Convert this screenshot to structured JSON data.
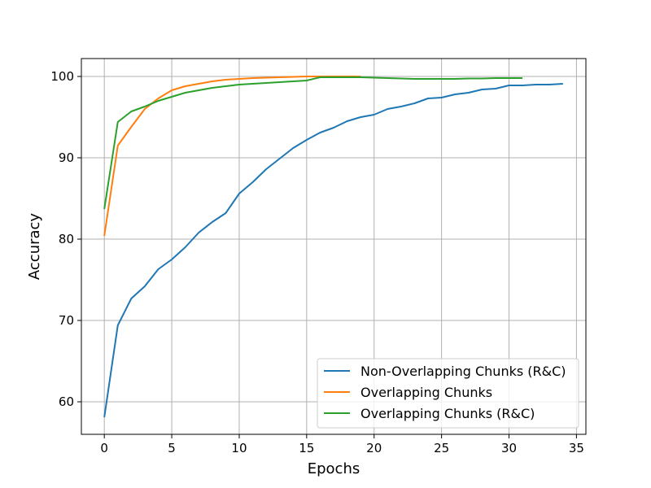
{
  "chart_data": {
    "type": "line",
    "title": "",
    "xlabel": "Epochs",
    "ylabel": "Accuracy",
    "xlim": [
      -1.7,
      35.7
    ],
    "ylim": [
      56.0,
      102.2
    ],
    "xticks": [
      0,
      5,
      10,
      15,
      20,
      25,
      30,
      35
    ],
    "yticks": [
      60,
      70,
      80,
      90,
      100
    ],
    "grid": true,
    "legend_position": "lower-right",
    "series": [
      {
        "name": "Non-Overlapping Chunks (R&C)",
        "color": "#1f77b4",
        "x": [
          0,
          1,
          2,
          3,
          4,
          5,
          6,
          7,
          8,
          9,
          10,
          11,
          12,
          13,
          14,
          15,
          16,
          17,
          18,
          19,
          20,
          21,
          22,
          23,
          24,
          25,
          26,
          27,
          28,
          29,
          30,
          31,
          32,
          33,
          34
        ],
        "values": [
          58.1,
          69.4,
          72.7,
          74.2,
          76.3,
          77.5,
          79.0,
          80.8,
          82.1,
          83.2,
          85.6,
          87.0,
          88.6,
          89.9,
          91.2,
          92.2,
          93.1,
          93.7,
          94.5,
          95.0,
          95.3,
          96.0,
          96.3,
          96.7,
          97.3,
          97.4,
          97.8,
          98.0,
          98.4,
          98.5,
          98.9,
          98.9,
          99.0,
          99.0,
          99.1
        ]
      },
      {
        "name": "Overlapping Chunks",
        "color": "#ff7f0e",
        "x": [
          0,
          1,
          2,
          3,
          4,
          5,
          6,
          7,
          8,
          9,
          10,
          11,
          12,
          13,
          14,
          15,
          16,
          17,
          18,
          19
        ],
        "values": [
          80.4,
          91.5,
          93.8,
          96.0,
          97.3,
          98.3,
          98.8,
          99.1,
          99.4,
          99.6,
          99.7,
          99.8,
          99.85,
          99.9,
          99.95,
          100.0,
          100.0,
          100.0,
          100.0,
          100.0
        ]
      },
      {
        "name": "Overlapping Chunks (R&C)",
        "color": "#2ca02c",
        "x": [
          0,
          1,
          2,
          3,
          4,
          5,
          6,
          7,
          8,
          9,
          10,
          11,
          12,
          13,
          14,
          15,
          16,
          17,
          18,
          19,
          20,
          21,
          22,
          23,
          24,
          25,
          26,
          27,
          28,
          29,
          30,
          31
        ],
        "values": [
          83.7,
          94.4,
          95.7,
          96.3,
          97.0,
          97.5,
          98.0,
          98.3,
          98.6,
          98.8,
          99.0,
          99.1,
          99.2,
          99.3,
          99.4,
          99.5,
          99.9,
          99.9,
          99.9,
          99.9,
          99.85,
          99.8,
          99.75,
          99.7,
          99.7,
          99.7,
          99.7,
          99.75,
          99.75,
          99.8,
          99.8,
          99.8
        ]
      }
    ]
  }
}
